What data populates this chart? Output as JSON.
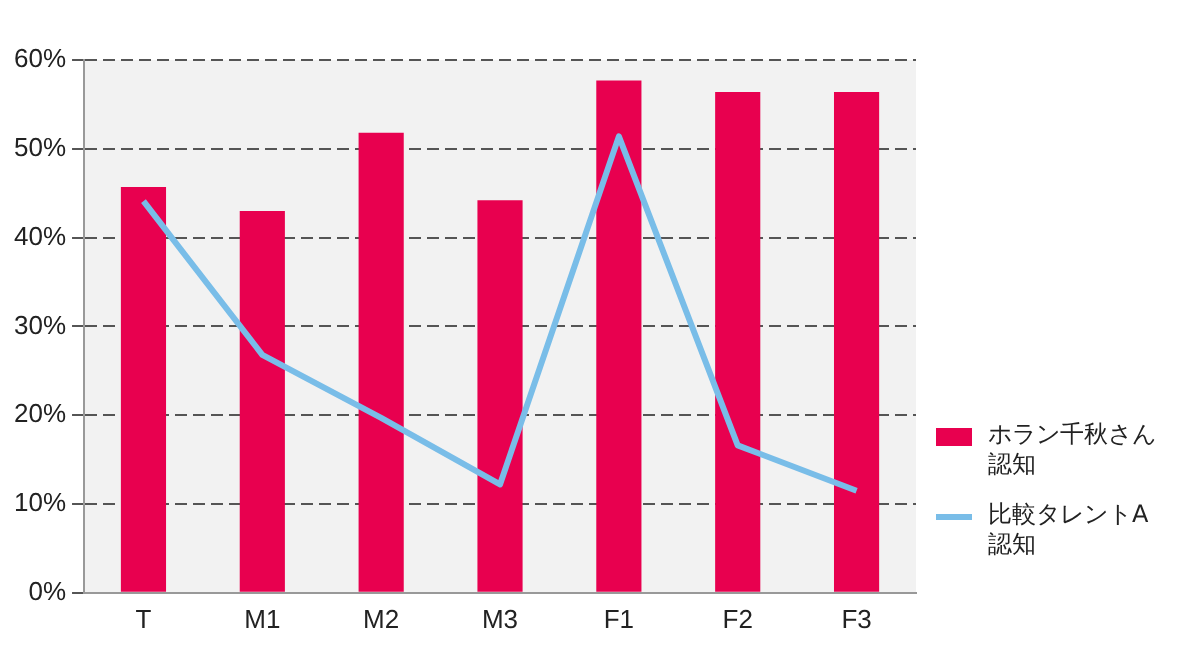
{
  "chart_data": {
    "type": "bar",
    "categories": [
      "T",
      "M1",
      "M2",
      "M3",
      "F1",
      "F2",
      "F3"
    ],
    "series": [
      {
        "name": "ホラン千秋さん認知",
        "color": "#e8004f",
        "values": [
          45.7,
          43.0,
          51.8,
          44.2,
          57.7,
          56.4,
          56.4
        ]
      },
      {
        "name": "比較タレントA認知",
        "type": "line",
        "color": "#79bde8",
        "values": [
          44.1,
          26.8,
          19.7,
          12.2,
          51.4,
          16.6,
          11.5
        ]
      }
    ],
    "ylim": [
      0,
      60
    ],
    "yticks": [
      {
        "value": 0,
        "label": "0%"
      },
      {
        "value": 10,
        "label": "10%"
      },
      {
        "value": 20,
        "label": "20%"
      },
      {
        "value": 30,
        "label": "30%"
      },
      {
        "value": 40,
        "label": "40%"
      },
      {
        "value": 50,
        "label": "50%"
      },
      {
        "value": 60,
        "label": "60%"
      }
    ],
    "grid": "y",
    "legend": "right",
    "marker": "none"
  }
}
